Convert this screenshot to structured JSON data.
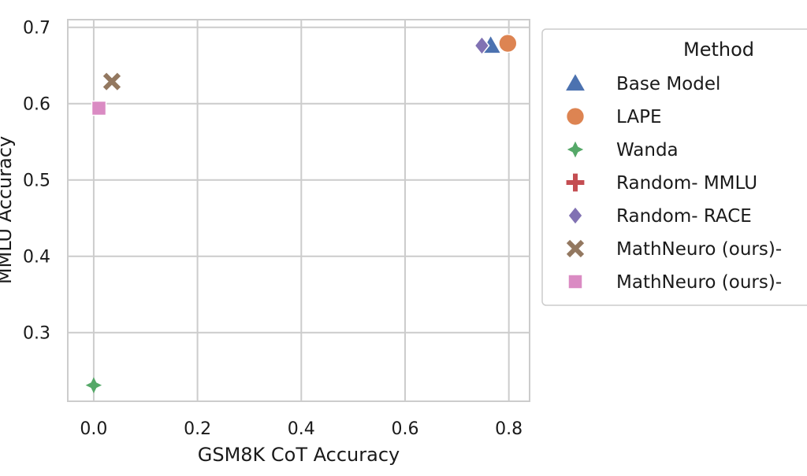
{
  "chart_data": {
    "type": "scatter",
    "title": "",
    "xlabel": "GSM8K CoT Accuracy",
    "ylabel": "MMLU Accuracy",
    "xlim": [
      -0.05,
      0.84
    ],
    "ylim": [
      0.21,
      0.71
    ],
    "xticks": [
      "0.0",
      "0.2",
      "0.4",
      "0.6",
      "0.8"
    ],
    "yticks": [
      "0.3",
      "0.4",
      "0.5",
      "0.6",
      "0.7"
    ],
    "grid": true,
    "legend": {
      "title": "Method",
      "placement": "right, outside plot"
    },
    "series": [
      {
        "name": "Base Model",
        "marker": "triangle",
        "color": "#4c72b0",
        "points": [
          {
            "x": 0.765,
            "y": 0.676
          }
        ]
      },
      {
        "name": "LAPE",
        "marker": "circle",
        "color": "#dd8452",
        "points": [
          {
            "x": 0.798,
            "y": 0.679
          }
        ]
      },
      {
        "name": "Wanda",
        "marker": "star4",
        "color": "#55a868",
        "points": [
          {
            "x": 0.0,
            "y": 0.231
          }
        ]
      },
      {
        "name": "Random- MMLU",
        "marker": "plus",
        "color": "#c44e52",
        "points": []
      },
      {
        "name": "Random- RACE",
        "marker": "diamond",
        "color": "#8172b3",
        "points": [
          {
            "x": 0.748,
            "y": 0.676
          }
        ]
      },
      {
        "name": "MathNeuro (ours)-",
        "marker": "x",
        "color": "#937860",
        "points": [
          {
            "x": 0.035,
            "y": 0.629
          }
        ]
      },
      {
        "name": "MathNeuro (ours)-",
        "marker": "square",
        "color": "#da8bc3",
        "points": [
          {
            "x": 0.01,
            "y": 0.594
          }
        ]
      }
    ]
  }
}
